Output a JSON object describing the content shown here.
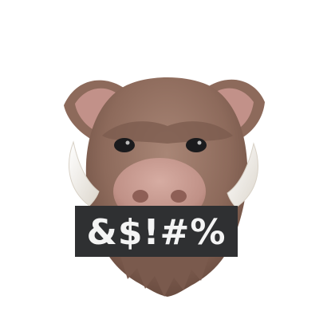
{
  "image": {
    "subject": "boar-memoji",
    "censor_text": "&$!#%",
    "colors": {
      "background": "#ffffff",
      "fur": "#8d6a5b",
      "fur_dark": "#6e5043",
      "fur_light": "#a88473",
      "snout": "#c79a90",
      "snout_dark": "#a9776d",
      "ear_inner": "#c29189",
      "tusk": "#f6f3ee",
      "eye": "#1b1b1d",
      "censor_bar": "#2f3032",
      "censor_text": "#f4f4f4"
    }
  }
}
